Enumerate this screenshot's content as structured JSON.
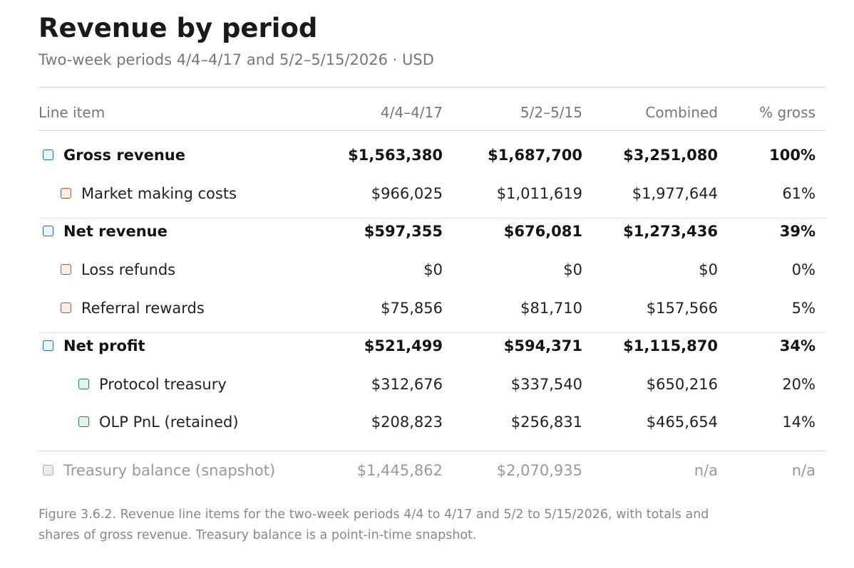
{
  "header": {
    "title": "Revenue by period",
    "subtitle": "Two-week periods 4/4–4/17 and 5/2–5/15/2026 · USD"
  },
  "table": {
    "columns": [
      "Line item",
      "4/4–4/17",
      "5/2–5/15",
      "Combined",
      "% gross"
    ],
    "rows": [
      [
        "Gross revenue",
        "$1,563,380",
        "$1,687,700",
        "$3,251,080",
        "100%"
      ],
      [
        "Market making costs",
        "$966,025",
        "$1,011,619",
        "$1,977,644",
        "61%"
      ],
      [
        "Net revenue",
        "$597,355",
        "$676,081",
        "$1,273,436",
        "39%"
      ],
      [
        "Loss refunds",
        "$0",
        "$0",
        "$0",
        "0%"
      ],
      [
        "Referral rewards",
        "$75,856",
        "$81,710",
        "$157,566",
        "5%"
      ],
      [
        "Net profit",
        "$521,499",
        "$594,371",
        "$1,115,870",
        "34%"
      ],
      [
        "Protocol treasury",
        "$312,676",
        "$337,540",
        "$650,216",
        "20%"
      ],
      [
        "OLP PnL (retained)",
        "$208,823",
        "$256,831",
        "$465,654",
        "14%"
      ],
      [
        "Treasury balance (snapshot)",
        "$1,445,862",
        "$2,070,935",
        "n/a",
        "n/a"
      ]
    ]
  },
  "caption": "Figure 3.6.2. Revenue line items for the two-week periods 4/4 to 4/17 and 5/2 to 5/15/2026, with totals and shares of gross revenue. Treasury balance is a point-in-time snapshot."
}
